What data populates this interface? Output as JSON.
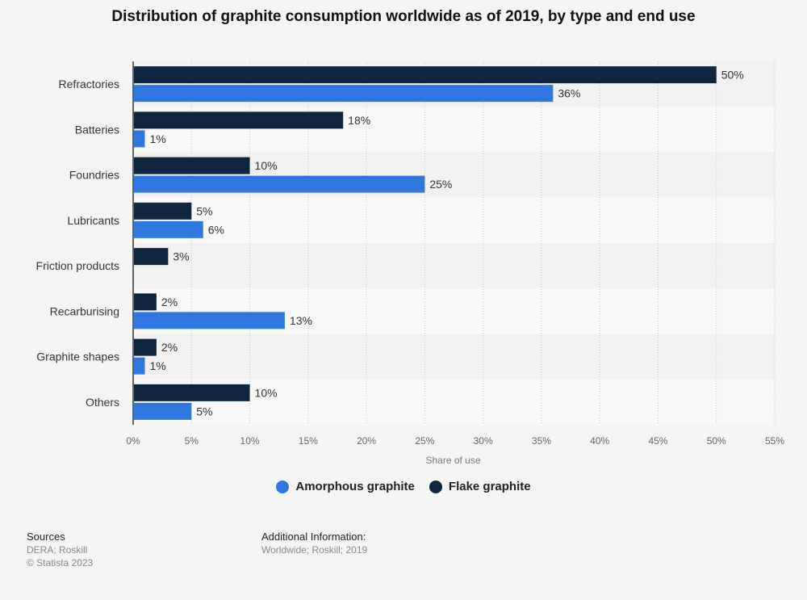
{
  "title": "Distribution of graphite consumption worldwide as of 2019, by type and end use",
  "chart_data": {
    "type": "bar",
    "orientation": "horizontal",
    "categories": [
      "Refractories",
      "Batteries",
      "Foundries",
      "Lubricants",
      "Friction products",
      "Recarburising",
      "Graphite shapes",
      "Others"
    ],
    "series": [
      {
        "name": "Flake graphite",
        "color": "#0f2640",
        "values": [
          50,
          18,
          10,
          5,
          3,
          2,
          2,
          10
        ]
      },
      {
        "name": "Amorphous graphite",
        "color": "#2f78e0",
        "values": [
          36,
          1,
          25,
          6,
          null,
          13,
          1,
          5
        ]
      }
    ],
    "xlabel": "Share of use",
    "xlim": [
      0,
      55
    ],
    "xticks": [
      0,
      5,
      10,
      15,
      20,
      25,
      30,
      35,
      40,
      45,
      50,
      55
    ],
    "tick_suffix": "%",
    "value_suffix": "%",
    "grid": true,
    "legend_position": "bottom"
  },
  "legend": [
    {
      "label": "Amorphous graphite",
      "color": "#2f78e0"
    },
    {
      "label": "Flake graphite",
      "color": "#0f2640"
    }
  ],
  "footer": {
    "sources_title": "Sources",
    "sources_line1": "DERA; Roskill",
    "sources_line2": "© Statista 2023",
    "info_title": "Additional Information:",
    "info_line1": "Worldwide; Roskill; 2019"
  }
}
